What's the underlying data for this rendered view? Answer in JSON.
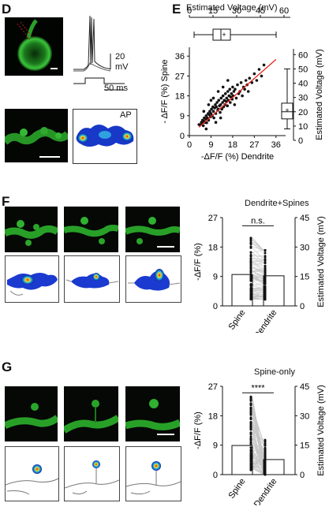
{
  "panels": {
    "D": {
      "letter": "D",
      "trace_scale_value": "20",
      "trace_scale_unit": "mV",
      "time_scale": "50 ms",
      "heatmap_label": "AP"
    },
    "E": {
      "letter": "E",
      "top_axis_title": "Estimated Voltage (mV)",
      "top_ticks": [
        "0",
        "15",
        "30",
        "45",
        "60"
      ],
      "ylabel": "- ΔF/F (%) Spine",
      "xlabel": "-ΔF/F (%) Dendrite",
      "y_ticks": [
        "0",
        "9",
        "18",
        "27",
        "36"
      ],
      "x_ticks": [
        "0",
        "9",
        "18",
        "27",
        "36"
      ],
      "right_axis_title": "Estimated Voltage (mV)",
      "right_ticks": [
        "0",
        "10",
        "20",
        "30",
        "40",
        "50",
        "60"
      ]
    },
    "F": {
      "letter": "F",
      "title": "Dendrite+Spines",
      "significance": "n.s.",
      "ylabel": "-ΔF/F (%)",
      "y_ticks": [
        "0",
        "9",
        "18",
        "27"
      ],
      "right_axis_title": "Estimated Voltage (mV)",
      "right_ticks": [
        "0",
        "15",
        "30",
        "45"
      ],
      "categories": [
        "Spine",
        "Dendrite"
      ]
    },
    "G": {
      "letter": "G",
      "title": "Spine-only",
      "significance": "****",
      "ylabel": "-ΔF/F (%)",
      "y_ticks": [
        "0",
        "9",
        "18",
        "27"
      ],
      "right_axis_title": "Estimated Voltage (mV)",
      "right_ticks": [
        "0",
        "15",
        "30",
        "45"
      ],
      "categories": [
        "Spine",
        "Dendrite"
      ]
    }
  },
  "chart_data": [
    {
      "type": "scatter",
      "panel": "E",
      "xlabel": "-ΔF/F (%) Dendrite",
      "ylabel": "- ΔF/F (%) Spine",
      "xlim": [
        0,
        40
      ],
      "ylim": [
        0,
        40
      ],
      "fit_line": {
        "x": [
          4,
          36
        ],
        "y": [
          3.8,
          34.5
        ],
        "color": "#e8241c"
      },
      "points": [
        [
          4,
          5
        ],
        [
          4.5,
          4.8
        ],
        [
          5,
          6
        ],
        [
          5.2,
          5.5
        ],
        [
          5.5,
          7
        ],
        [
          5.8,
          4.5
        ],
        [
          6,
          6.5
        ],
        [
          6.2,
          8
        ],
        [
          6.5,
          6
        ],
        [
          6.8,
          7.5
        ],
        [
          7,
          9
        ],
        [
          7.2,
          5.8
        ],
        [
          7.5,
          8
        ],
        [
          7.8,
          10
        ],
        [
          8,
          7
        ],
        [
          8.2,
          9.5
        ],
        [
          8.5,
          11
        ],
        [
          8.8,
          8.5
        ],
        [
          9,
          10
        ],
        [
          9.2,
          12
        ],
        [
          9.5,
          9
        ],
        [
          9.8,
          13
        ],
        [
          10,
          11
        ],
        [
          10.2,
          8
        ],
        [
          10.5,
          12.5
        ],
        [
          10.8,
          14
        ],
        [
          11,
          10
        ],
        [
          11.2,
          13
        ],
        [
          11.5,
          15
        ],
        [
          11.8,
          11.5
        ],
        [
          12,
          12
        ],
        [
          12.2,
          16
        ],
        [
          12.5,
          13.5
        ],
        [
          12.8,
          10.5
        ],
        [
          13,
          14
        ],
        [
          13.2,
          17
        ],
        [
          13.5,
          12
        ],
        [
          13.8,
          15
        ],
        [
          14,
          18
        ],
        [
          14.2,
          13
        ],
        [
          14.5,
          16
        ],
        [
          14.8,
          14
        ],
        [
          15,
          19
        ],
        [
          15.2,
          15.5
        ],
        [
          15.5,
          17
        ],
        [
          15.8,
          13.5
        ],
        [
          16,
          20
        ],
        [
          16.2,
          16
        ],
        [
          16.5,
          18
        ],
        [
          16.8,
          21
        ],
        [
          17,
          15
        ],
        [
          17.2,
          17.5
        ],
        [
          17.5,
          19
        ],
        [
          17.8,
          16.5
        ],
        [
          18,
          22
        ],
        [
          18.2,
          18
        ],
        [
          18.5,
          20
        ],
        [
          18.8,
          14
        ],
        [
          19,
          21
        ],
        [
          19.5,
          17
        ],
        [
          20,
          23
        ],
        [
          20.5,
          19
        ],
        [
          21,
          20
        ],
        [
          21.5,
          24
        ],
        [
          22,
          18
        ],
        [
          22.5,
          22
        ],
        [
          23,
          21
        ],
        [
          23.5,
          25
        ],
        [
          24,
          23
        ],
        [
          24.5,
          20
        ],
        [
          25,
          26
        ],
        [
          26,
          24
        ],
        [
          27,
          28
        ],
        [
          28,
          25
        ],
        [
          29,
          30
        ],
        [
          30,
          27
        ],
        [
          31,
          32
        ],
        [
          8,
          14
        ],
        [
          9,
          16
        ],
        [
          10,
          17
        ],
        [
          12,
          20
        ],
        [
          14,
          22
        ],
        [
          16,
          25
        ],
        [
          6,
          11
        ],
        [
          7,
          3
        ],
        [
          11,
          6
        ],
        [
          13,
          8
        ]
      ],
      "right_boxplot": {
        "median": 20,
        "q1": 15,
        "q3": 26,
        "whisker_low": 8,
        "whisker_high": 50,
        "mean": 21,
        "unit": "mV"
      },
      "top_boxplot": {
        "median": 20,
        "q1": 15,
        "q3": 26,
        "whisker_low": 3,
        "whisker_high": 55,
        "mean": 21,
        "unit": "mV"
      }
    },
    {
      "type": "bar",
      "panel": "F",
      "categories": [
        "Spine",
        "Dendrite"
      ],
      "values": [
        9.6,
        9.2
      ],
      "ylim": [
        0,
        27
      ],
      "scatter_range": {
        "Spine": [
          2,
          22
        ],
        "Dendrite": [
          2,
          17
        ]
      }
    },
    {
      "type": "bar",
      "panel": "G",
      "categories": [
        "Spine",
        "Dendrite"
      ],
      "values": [
        8.9,
        4.6
      ],
      "ylim": [
        0,
        27
      ],
      "scatter_range": {
        "Spine": [
          1,
          24
        ],
        "Dendrite": [
          0,
          11
        ]
      }
    }
  ]
}
